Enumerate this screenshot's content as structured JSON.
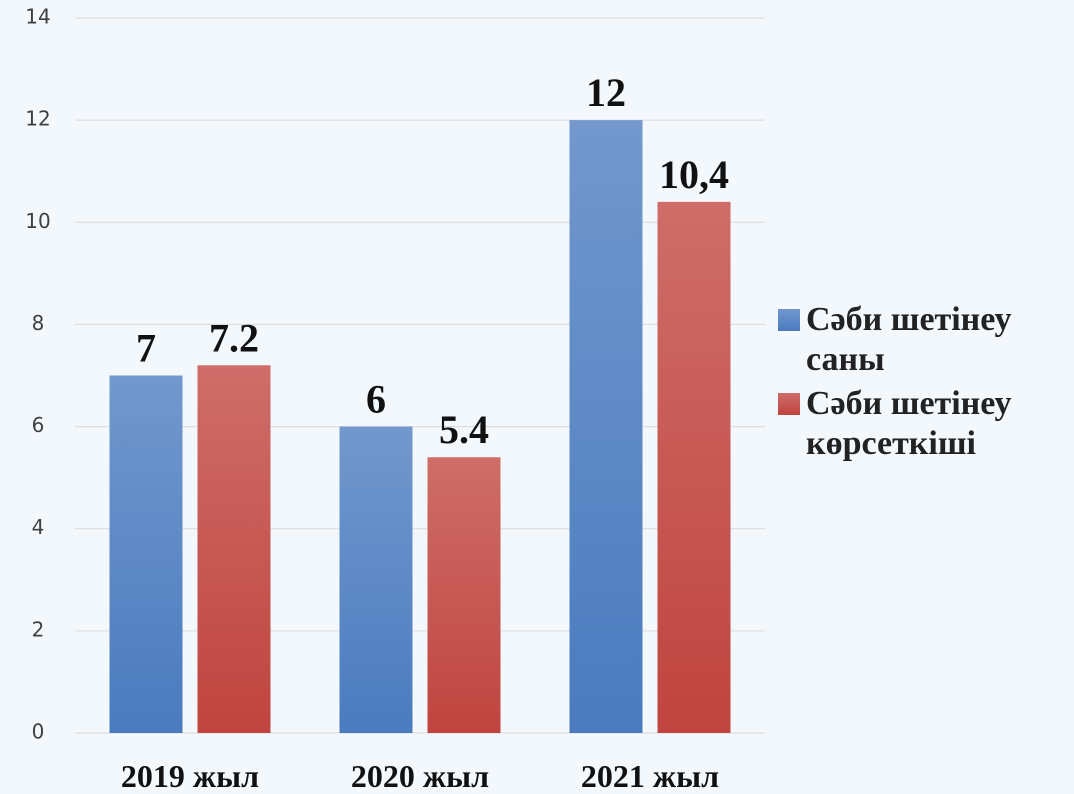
{
  "chart_data": {
    "type": "bar",
    "categories": [
      "2019 жыл",
      "2020 жыл",
      "2021 жыл"
    ],
    "series": [
      {
        "name": "Сәби шетінеу саны",
        "color": "#4a7bbf",
        "values": [
          7,
          6,
          12
        ]
      },
      {
        "name": "Сәби шетінеу көрсеткіші",
        "color": "#c0443f",
        "values": [
          7.2,
          5.4,
          10.4
        ],
        "value_labels": [
          "7.2",
          "5.4",
          "10,4"
        ]
      }
    ],
    "ylim": [
      0,
      14
    ],
    "yticks": [
      0,
      2,
      4,
      6,
      8,
      10,
      12,
      14
    ],
    "grid": true,
    "legend": "right"
  }
}
